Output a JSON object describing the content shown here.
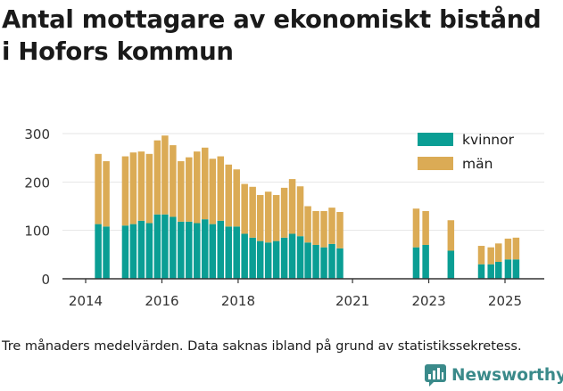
{
  "title_lines": [
    "Antal mottagare av ekonomiskt bistånd",
    "i Hofors kommun"
  ],
  "footnote": "Tre månaders medelvärden. Data saknas ibland på grund av statistikssekretess.",
  "brand": "Newsworthy",
  "colors": {
    "kvinnor": "#0a9e94",
    "man": "#dbab55",
    "axis": "#333333",
    "grid": "#e6e6e6",
    "brand": "#3a8a8a"
  },
  "chart_data": {
    "type": "bar",
    "stacked": true,
    "ylim": [
      0,
      300
    ],
    "yticks": [
      0,
      100,
      200,
      300
    ],
    "xticks": [
      {
        "label": "2014",
        "x": 2014.0
      },
      {
        "label": "2016",
        "x": 2016.0
      },
      {
        "label": "2018",
        "x": 2018.0
      },
      {
        "label": "2021",
        "x": 2021.0
      },
      {
        "label": "2023",
        "x": 2023.0
      },
      {
        "label": "2025",
        "x": 2025.0
      }
    ],
    "legend": {
      "position": "top-right",
      "entries": [
        "kvinnor",
        "män"
      ]
    },
    "series": [
      {
        "name": "kvinnor",
        "key": "kvinnor"
      },
      {
        "name": "män",
        "key": "man"
      }
    ],
    "x": [
      2014.33,
      2014.54,
      2015.04,
      2015.25,
      2015.46,
      2015.67,
      2015.88,
      2016.08,
      2016.29,
      2016.5,
      2016.71,
      2016.92,
      2017.13,
      2017.33,
      2017.54,
      2017.75,
      2017.96,
      2018.17,
      2018.38,
      2018.58,
      2018.79,
      2019.0,
      2019.21,
      2019.42,
      2019.63,
      2019.83,
      2020.04,
      2020.25,
      2020.46,
      2020.67,
      2020.88,
      2021.08,
      2021.29,
      2021.5,
      2021.71,
      2022.67,
      2022.92,
      2023.58,
      2024.38,
      2024.63,
      2024.83,
      2025.08,
      2025.29
    ],
    "kvinnor": [
      113,
      108,
      110,
      113,
      120,
      115,
      133,
      133,
      128,
      118,
      118,
      115,
      123,
      113,
      120,
      108,
      108,
      93,
      85,
      78,
      75,
      78,
      85,
      93,
      88,
      75,
      70,
      65,
      72,
      63,
      0,
      0,
      0,
      0,
      0,
      65,
      70,
      58,
      30,
      30,
      35,
      40,
      40
    ],
    "man": [
      145,
      135,
      143,
      148,
      143,
      143,
      153,
      163,
      148,
      125,
      133,
      148,
      148,
      135,
      133,
      128,
      118,
      103,
      105,
      95,
      105,
      95,
      103,
      113,
      103,
      75,
      70,
      75,
      75,
      75,
      0,
      0,
      0,
      0,
      0,
      80,
      70,
      63,
      38,
      35,
      38,
      43,
      45
    ]
  }
}
